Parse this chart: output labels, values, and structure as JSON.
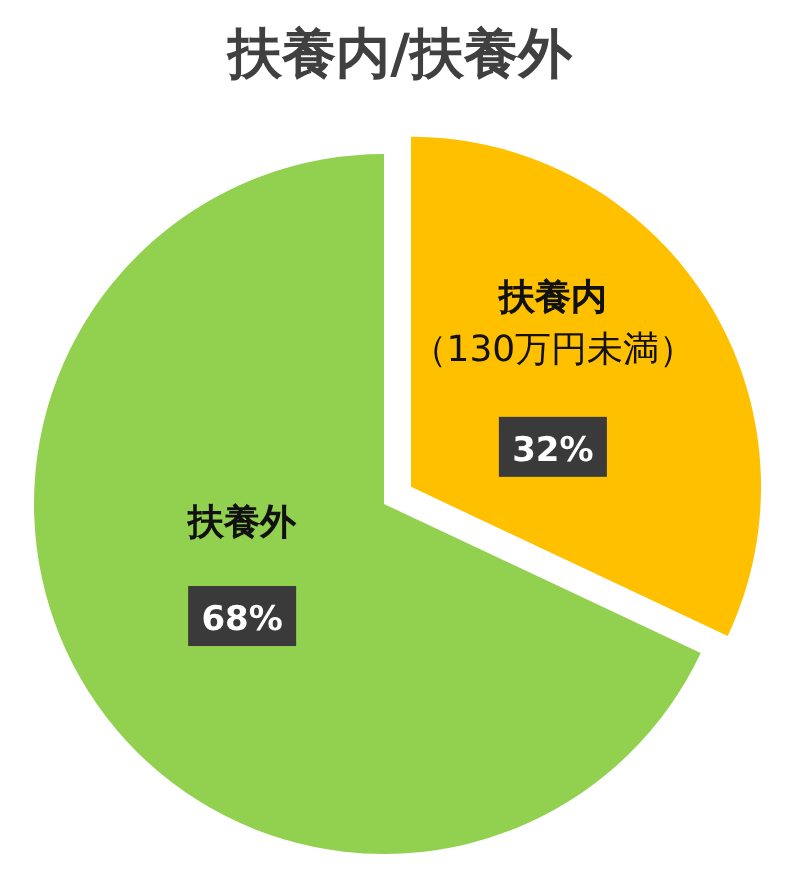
{
  "chart_data": {
    "type": "pie",
    "title": "扶養内/扶養外",
    "categories": [
      "扶養内（130万円未満）",
      "扶養外"
    ],
    "values": [
      32,
      68
    ],
    "colors": [
      "#ffc000",
      "#92d050"
    ],
    "value_labels": [
      "32%",
      "68%"
    ]
  }
}
